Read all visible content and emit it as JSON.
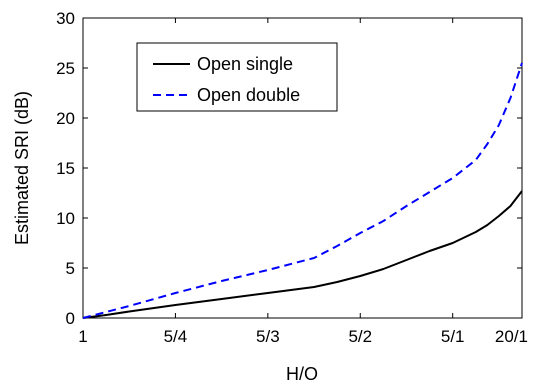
{
  "chart_data": {
    "type": "line",
    "xlabel": "H/O",
    "ylabel": "Estimated SRI (dB)",
    "title": "",
    "x_scale": "reciprocal",
    "x_ticks": [
      {
        "label": "1",
        "value": 1
      },
      {
        "label": "5/4",
        "value": 1.25
      },
      {
        "label": "5/3",
        "value": 1.6667
      },
      {
        "label": "5/2",
        "value": 2.5
      },
      {
        "label": "5/1",
        "value": 5
      },
      {
        "label": "20/1",
        "value": 20
      }
    ],
    "xlim": [
      1,
      20
    ],
    "ylim": [
      0,
      30
    ],
    "y_ticks": [
      0,
      5,
      10,
      15,
      20,
      25,
      30
    ],
    "grid": false,
    "legend_position": "top-left",
    "series": [
      {
        "name": "Open single",
        "color": "#000000",
        "style": "solid",
        "points": [
          {
            "x": 1.0,
            "y": 0.0
          },
          {
            "x": 1.0526,
            "y": 0.3
          },
          {
            "x": 1.1111,
            "y": 0.65
          },
          {
            "x": 1.25,
            "y": 1.3
          },
          {
            "x": 1.4286,
            "y": 1.9
          },
          {
            "x": 1.6667,
            "y": 2.5
          },
          {
            "x": 2.0,
            "y": 3.1
          },
          {
            "x": 2.2222,
            "y": 3.6
          },
          {
            "x": 2.5,
            "y": 4.2
          },
          {
            "x": 2.8571,
            "y": 4.9
          },
          {
            "x": 3.3333,
            "y": 5.8
          },
          {
            "x": 4.0,
            "y": 6.7
          },
          {
            "x": 5.0,
            "y": 7.5
          },
          {
            "x": 6.6667,
            "y": 8.6
          },
          {
            "x": 8.0,
            "y": 9.3
          },
          {
            "x": 10.0,
            "y": 10.2
          },
          {
            "x": 13.3333,
            "y": 11.2
          },
          {
            "x": 20.0,
            "y": 12.7
          }
        ]
      },
      {
        "name": "Open double",
        "color": "#0000ff",
        "style": "dashed",
        "points": [
          {
            "x": 1.0,
            "y": 0.0
          },
          {
            "x": 1.0526,
            "y": 0.6
          },
          {
            "x": 1.1111,
            "y": 1.2
          },
          {
            "x": 1.25,
            "y": 2.5
          },
          {
            "x": 1.4286,
            "y": 3.7
          },
          {
            "x": 1.6667,
            "y": 4.8
          },
          {
            "x": 2.0,
            "y": 6.0
          },
          {
            "x": 2.2222,
            "y": 7.2
          },
          {
            "x": 2.5,
            "y": 8.5
          },
          {
            "x": 2.8571,
            "y": 9.7
          },
          {
            "x": 3.3333,
            "y": 11.2
          },
          {
            "x": 4.0,
            "y": 12.6
          },
          {
            "x": 5.0,
            "y": 14.0
          },
          {
            "x": 6.6667,
            "y": 15.8
          },
          {
            "x": 8.0,
            "y": 17.4
          },
          {
            "x": 10.0,
            "y": 19.3
          },
          {
            "x": 13.3333,
            "y": 22.0
          },
          {
            "x": 20.0,
            "y": 25.5
          }
        ]
      }
    ]
  }
}
